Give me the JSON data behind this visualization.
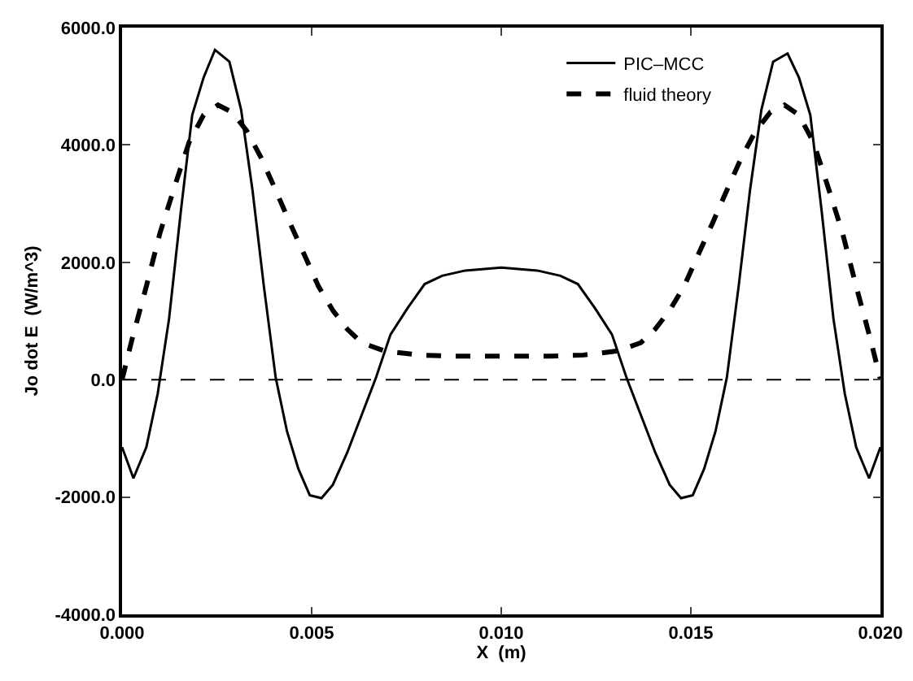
{
  "chart_data": {
    "type": "line",
    "xlabel": "X  (m)",
    "ylabel": "Jo dot E  (W/m^3)",
    "xlim": [
      0,
      0.02
    ],
    "xticks": [
      {
        "value": 0,
        "label": "0.000"
      },
      {
        "value": 0.005,
        "label": "0.005"
      },
      {
        "value": 0.01,
        "label": "0.010"
      },
      {
        "value": 0.015,
        "label": "0.015"
      },
      {
        "value": 0.02,
        "label": "0.020"
      }
    ],
    "ylim": [
      -4000,
      6000
    ],
    "yticks": [
      {
        "value": -4000,
        "label": "-4000.0"
      },
      {
        "value": -2000,
        "label": "-2000.0"
      },
      {
        "value": 0,
        "label": "0.0"
      },
      {
        "value": 2000,
        "label": "2000.0"
      },
      {
        "value": 4000,
        "label": "4000.0"
      },
      {
        "value": 6000,
        "label": "6000.0"
      }
    ],
    "grid": false,
    "legend": "top right",
    "ref_lines": [
      {
        "axis": "y",
        "value": 0,
        "color": "#000000",
        "line_style": "dashed"
      }
    ],
    "series": [
      {
        "name": "PIC–MCC",
        "color": "#000000",
        "line_style": "solid",
        "x": [
          0,
          0.0003,
          0.00064,
          0.00094,
          0.00124,
          0.00155,
          0.00185,
          0.00215,
          0.00245,
          0.00283,
          0.00314,
          0.00344,
          0.00374,
          0.00405,
          0.00435,
          0.00465,
          0.00495,
          0.00526,
          0.00556,
          0.00594,
          0.00632,
          0.0067,
          0.00708,
          0.00753,
          0.00798,
          0.00844,
          0.00905,
          0.01,
          0.01095,
          0.01156,
          0.01202,
          0.01247,
          0.01292,
          0.0133,
          0.01368,
          0.01406,
          0.01444,
          0.01474,
          0.01505,
          0.01535,
          0.01565,
          0.01595,
          0.01626,
          0.01656,
          0.01686,
          0.01717,
          0.01755,
          0.01785,
          0.01815,
          0.01845,
          0.01876,
          0.01906,
          0.01936,
          0.0197,
          0.02
        ],
        "values": [
          -1150,
          -1680,
          -1150,
          -240,
          1040,
          2870,
          4510,
          5150,
          5620,
          5420,
          4600,
          3230,
          1590,
          40,
          -880,
          -1520,
          -1970,
          -2020,
          -1790,
          -1240,
          -600,
          40,
          770,
          1220,
          1630,
          1770,
          1860,
          1910,
          1860,
          1770,
          1630,
          1220,
          770,
          40,
          -600,
          -1240,
          -1790,
          -2020,
          -1970,
          -1520,
          -880,
          40,
          1590,
          3230,
          4600,
          5420,
          5560,
          5150,
          4510,
          2870,
          1040,
          -240,
          -1150,
          -1680,
          -1150
        ]
      },
      {
        "name": "fluid theory",
        "color": "#000000",
        "line_style": "dashed",
        "x": [
          0,
          0.00026,
          0.00064,
          0.001,
          0.0014,
          0.00177,
          0.00215,
          0.00253,
          0.0029,
          0.00329,
          0.00367,
          0.00405,
          0.00442,
          0.0048,
          0.00518,
          0.00556,
          0.00594,
          0.00632,
          0.00692,
          0.00783,
          0.00874,
          0.01,
          0.01126,
          0.01217,
          0.01308,
          0.01368,
          0.01406,
          0.01444,
          0.01482,
          0.0152,
          0.01558,
          0.01595,
          0.01633,
          0.01671,
          0.0171,
          0.01747,
          0.01785,
          0.01823,
          0.0186,
          0.019,
          0.01936,
          0.01974,
          0.02
        ],
        "values": [
          0,
          680,
          1590,
          2500,
          3320,
          4050,
          4510,
          4680,
          4560,
          4240,
          3780,
          3230,
          2680,
          2140,
          1590,
          1180,
          860,
          630,
          490,
          420,
          400,
          400,
          400,
          420,
          490,
          630,
          860,
          1180,
          1590,
          2140,
          2680,
          3230,
          3780,
          4240,
          4560,
          4680,
          4510,
          4050,
          3320,
          2500,
          1590,
          680,
          0
        ]
      }
    ]
  }
}
